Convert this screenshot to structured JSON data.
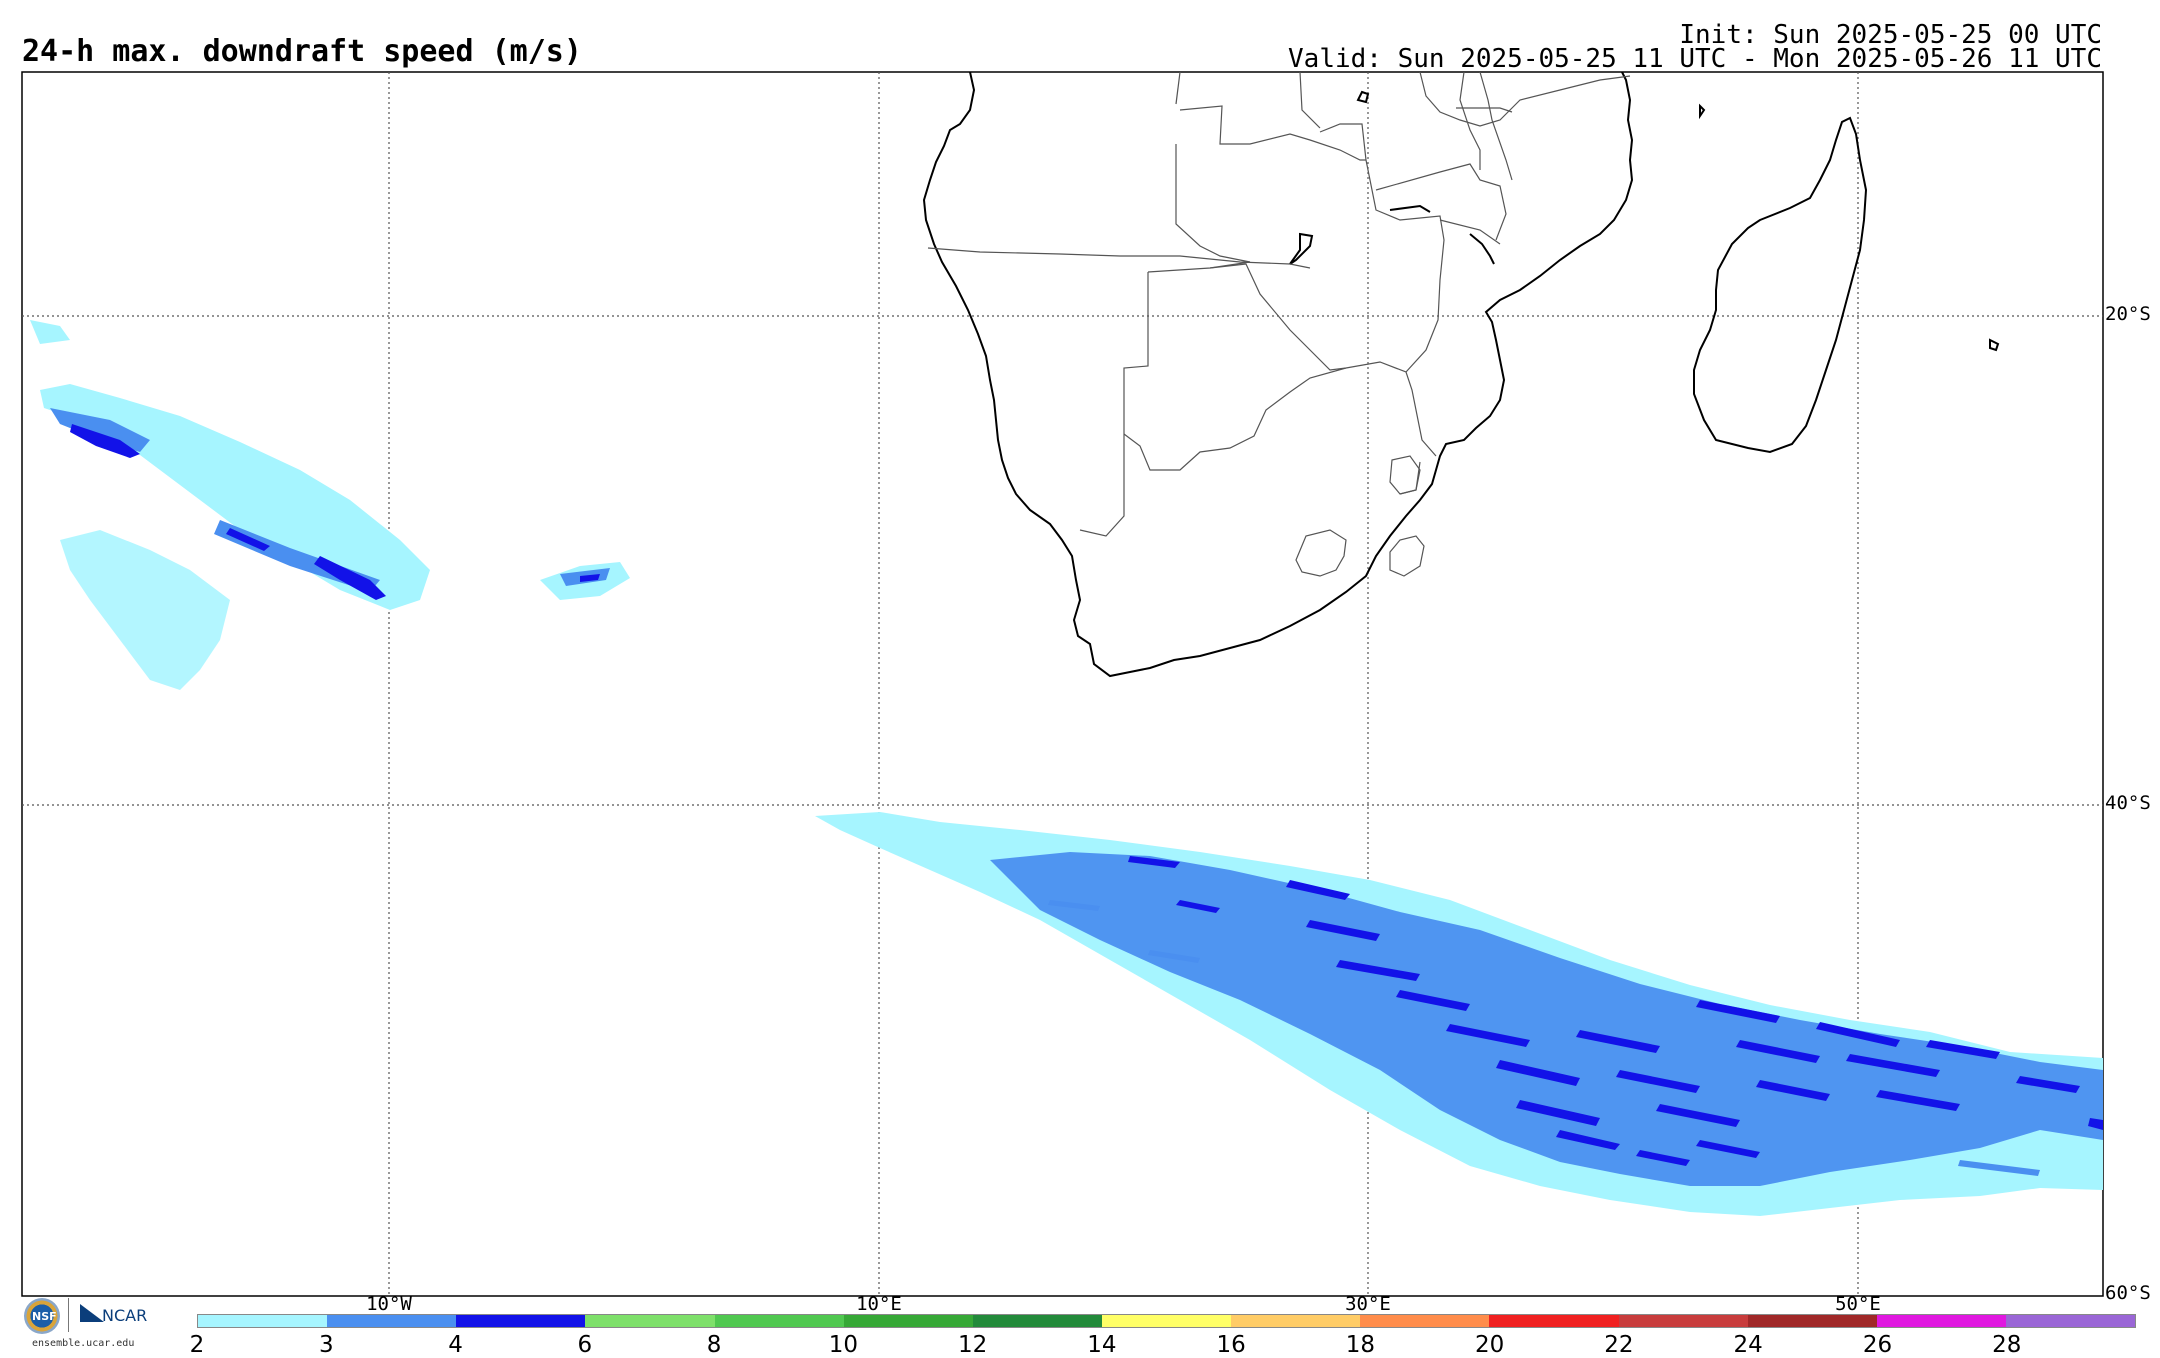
{
  "title": "24-h max. downdraft speed (m/s)",
  "init": "Init: Sun 2025-05-25 00 UTC",
  "valid": "Valid: Sun 2025-05-25 11 UTC - Mon 2025-05-26 11 UTC",
  "lat_labels": [
    "20°S",
    "40°S",
    "60°S"
  ],
  "lon_labels": [
    "10°W",
    "10°E",
    "30°E",
    "50°E"
  ],
  "logo": {
    "nsf": "NSF",
    "ncar": "NCAR",
    "site": "ensemble.ucar.edu"
  },
  "colorbar": {
    "ticks": [
      "2",
      "3",
      "4",
      "6",
      "8",
      "10",
      "12",
      "14",
      "16",
      "18",
      "20",
      "22",
      "24",
      "26",
      "28"
    ],
    "colors": [
      "#a6f5ff",
      "#4a8ff0",
      "#1212e8",
      "#7ee06a",
      "#50c850",
      "#36a836",
      "#228a3a",
      "#ffff66",
      "#ffcc66",
      "#ff8c4a",
      "#f02020",
      "#c83c3c",
      "#a02828",
      "#e018e0",
      "#9a66d6"
    ]
  },
  "colors": {
    "light": "#a6f5ff",
    "medium": "#4a8ff0",
    "dark": "#1212e8"
  }
}
